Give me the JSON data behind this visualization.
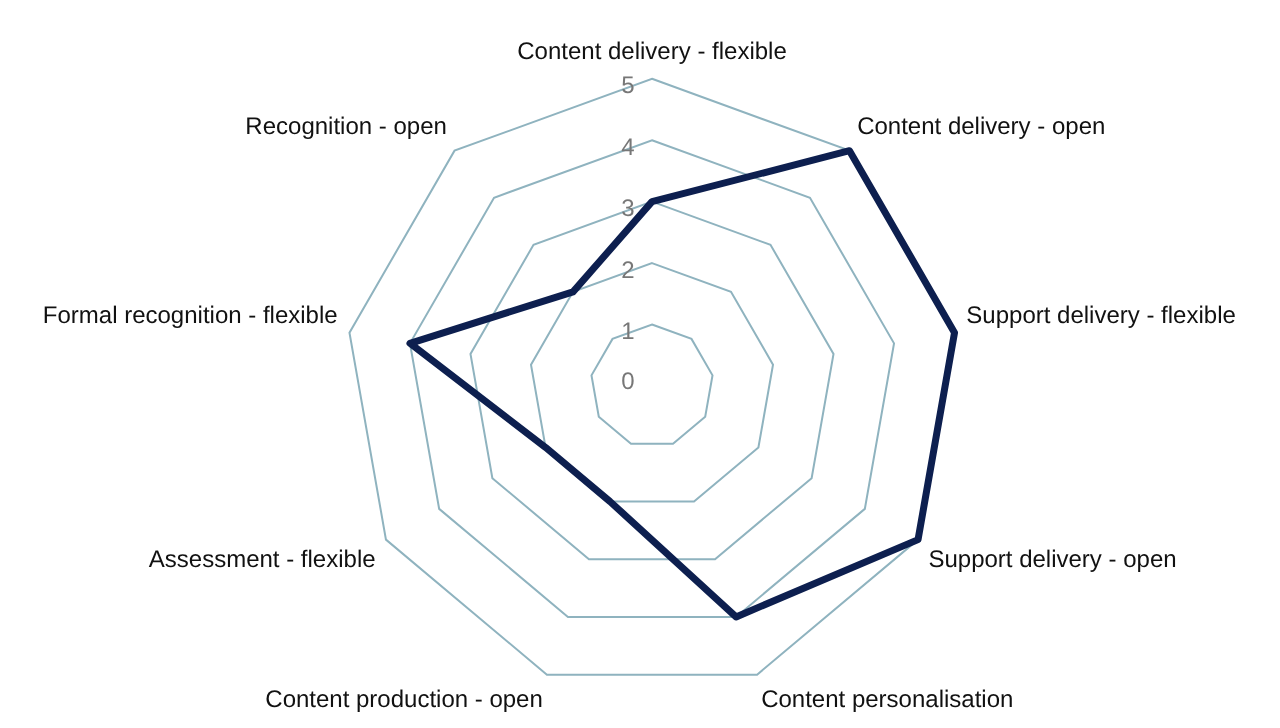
{
  "chart_data": {
    "type": "radar",
    "categories": [
      "Content delivery - flexible",
      "Content delivery - open",
      "Support delivery - flexible",
      "Support delivery - open",
      "Content personalisation",
      "Content production - open",
      "Assessment - flexible",
      "Formal recognition - flexible",
      "Recognition - open"
    ],
    "series": [
      {
        "color": "#0d1f4f",
        "values": [
          3,
          5,
          5,
          5,
          4,
          2,
          2,
          4,
          2
        ]
      }
    ],
    "ylim": [
      0,
      5
    ],
    "yticks": [
      0,
      1,
      2,
      3,
      4,
      5
    ],
    "grid": true,
    "legend": false,
    "marker": "none",
    "line_style": "solid"
  }
}
